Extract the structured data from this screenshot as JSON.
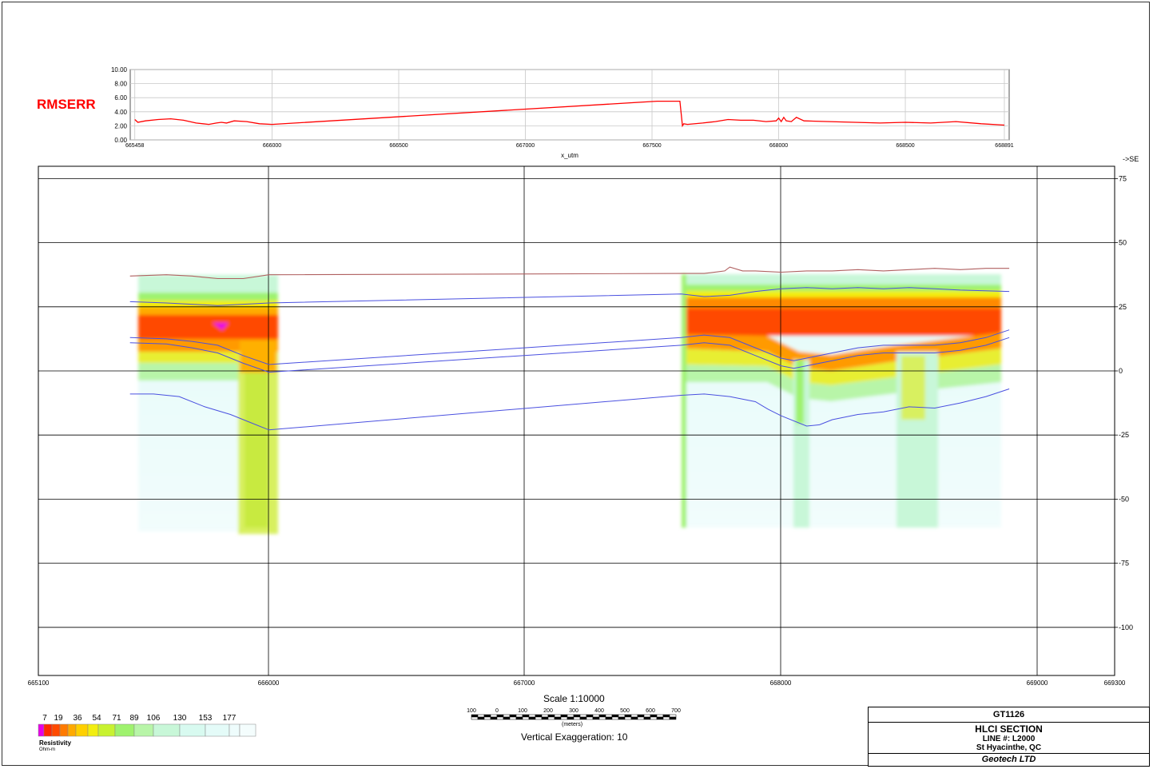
{
  "rms_panel": {
    "label": "RMSERR",
    "xlabel": "x_utm",
    "y_ticks": [
      "10.00",
      "8.00",
      "6.00",
      "4.00",
      "2.00",
      "0.00"
    ],
    "x_ticks": [
      "665458",
      "666000",
      "666500",
      "667000",
      "667500",
      "668000",
      "668500",
      "668891"
    ],
    "series_color": "#ff0000"
  },
  "section": {
    "direction_label": "->SE",
    "x_ticks": [
      "665100",
      "666000",
      "667000",
      "668000",
      "669000",
      "669300"
    ],
    "y_ticks": [
      "75",
      "50",
      "25",
      "0",
      "-25",
      "-50",
      "-75",
      "-100"
    ]
  },
  "scale_bar": {
    "title": "Scale 1:10000",
    "ticks": [
      "100",
      "0",
      "100",
      "200",
      "300",
      "400",
      "500",
      "600",
      "700"
    ],
    "unit": "(meters)",
    "vertical_exaggeration": "Vertical Exaggeration: 10"
  },
  "legend": {
    "title": "Resistivity",
    "unit": "Ohm-m",
    "labels": [
      "7",
      "19",
      "36",
      "54",
      "71",
      "89",
      "106",
      "130",
      "153",
      "177"
    ],
    "colors": [
      "#e600e6",
      "#ff2a00",
      "#ff4a00",
      "#ff7a00",
      "#ffaa00",
      "#ffd000",
      "#f2ee10",
      "#c8f230",
      "#9ff26e",
      "#b8f5a8",
      "#c8f7d8",
      "#d8faf0",
      "#e4fbf8",
      "#eefcfc",
      "#f4fdfd"
    ]
  },
  "title_block": {
    "project": "GT1126",
    "title": "HLCI SECTION",
    "line": "LINE #:  L2000",
    "location": "St Hyacinthe, QC",
    "company": "Geotech LTD"
  },
  "chart_data": [
    {
      "type": "line",
      "title": "",
      "ylabel": "RMSERR",
      "xlabel": "x_utm",
      "ylim": [
        0,
        10
      ],
      "xlim": [
        665440,
        668910
      ],
      "grid": true,
      "series": [
        {
          "name": "RMSERR",
          "x": [
            665458,
            665470,
            665500,
            665550,
            665600,
            665650,
            665700,
            665750,
            665780,
            665800,
            665820,
            665850,
            665900,
            665950,
            666000,
            667520,
            667560,
            667590,
            667610,
            667620,
            667625,
            667640,
            667700,
            667750,
            667800,
            667850,
            667900,
            667950,
            667990,
            668000,
            668010,
            668020,
            668030,
            668050,
            668070,
            668100,
            668200,
            668300,
            668400,
            668500,
            668600,
            668700,
            668800,
            668891
          ],
          "y": [
            2.9,
            2.5,
            2.7,
            2.9,
            3.0,
            2.8,
            2.4,
            2.2,
            2.4,
            2.5,
            2.4,
            2.7,
            2.6,
            2.3,
            2.2,
            5.5,
            5.5,
            5.5,
            5.5,
            2.0,
            2.3,
            2.2,
            2.4,
            2.6,
            2.9,
            2.8,
            2.8,
            2.6,
            2.7,
            3.1,
            2.6,
            3.2,
            2.7,
            2.6,
            3.2,
            2.7,
            2.6,
            2.5,
            2.4,
            2.5,
            2.4,
            2.6,
            2.3,
            2.1
          ]
        }
      ]
    },
    {
      "type": "heatmap",
      "title": "",
      "xlabel": "",
      "ylabel": "",
      "xlim": [
        665100,
        669300
      ],
      "ylim": [
        -120,
        80
      ],
      "grid": true,
      "value_label": "Resistivity (Ohm-m)",
      "data_extents": [
        {
          "x": [
            665458,
            666000
          ],
          "y_top": 37,
          "y_bottom": -62
        },
        {
          "x": [
            667610,
            668891
          ],
          "y_top": 38,
          "y_bottom": -60
        }
      ],
      "surface_line": {
        "x": [
          665458,
          665600,
          665700,
          665800,
          665900,
          666000,
          667610,
          667700,
          667780,
          667800,
          667850,
          667900,
          668000,
          668100,
          668200,
          668300,
          668400,
          668500,
          668600,
          668700,
          668800,
          668891
        ],
        "y": [
          37,
          37.5,
          37,
          36,
          36,
          37.5,
          38,
          38,
          39,
          40.5,
          39,
          39,
          38.5,
          39,
          39,
          39.5,
          39,
          39.5,
          40,
          39.5,
          40,
          40
        ]
      },
      "layer_lines": [
        {
          "x": [
            665458,
            665600,
            665700,
            665800,
            666000,
            667610,
            667700,
            667800,
            667900,
            668000,
            668100,
            668200,
            668300,
            668400,
            668500,
            668600,
            668700,
            668891
          ],
          "y": [
            27,
            26.5,
            26,
            25.5,
            26.5,
            30,
            29,
            29.5,
            31,
            32,
            32.5,
            32,
            32.5,
            32,
            32.5,
            32,
            31.5,
            31
          ]
        },
        {
          "x": [
            665458,
            665600,
            665700,
            665800,
            665900,
            666000,
            667610,
            667700,
            667800,
            667900,
            668000,
            668050,
            668100,
            668200,
            668300,
            668400,
            668500,
            668600,
            668700,
            668800,
            668891
          ],
          "y": [
            13,
            12.5,
            11.5,
            10,
            6,
            2.5,
            13,
            14,
            13,
            9,
            5,
            4,
            5,
            7,
            9,
            10,
            10,
            10,
            11,
            13,
            16
          ]
        },
        {
          "x": [
            665458,
            665600,
            665700,
            665800,
            665900,
            666000,
            667610,
            667700,
            667800,
            667900,
            668000,
            668050,
            668100,
            668200,
            668300,
            668400,
            668500,
            668600,
            668700,
            668800,
            668891
          ],
          "y": [
            11,
            10.5,
            9,
            7,
            3,
            -0.5,
            10,
            11,
            10,
            6,
            2,
            1,
            2,
            4,
            6,
            7,
            7,
            7,
            8,
            10,
            13
          ]
        },
        {
          "x": [
            665458,
            665550,
            665650,
            665750,
            665850,
            665950,
            666000,
            667610,
            667700,
            667800,
            667900,
            667950,
            668000,
            668100,
            668150,
            668200,
            668300,
            668400,
            668500,
            668600,
            668700,
            668800,
            668891
          ],
          "y": [
            -9,
            -9,
            -10,
            -14,
            -17,
            -21,
            -23,
            -9.5,
            -9,
            -10,
            -12,
            -15,
            -17.5,
            -21.5,
            -21,
            -19,
            -17,
            -16,
            -14,
            -14.5,
            -12.5,
            -10,
            -7
          ]
        }
      ]
    }
  ]
}
